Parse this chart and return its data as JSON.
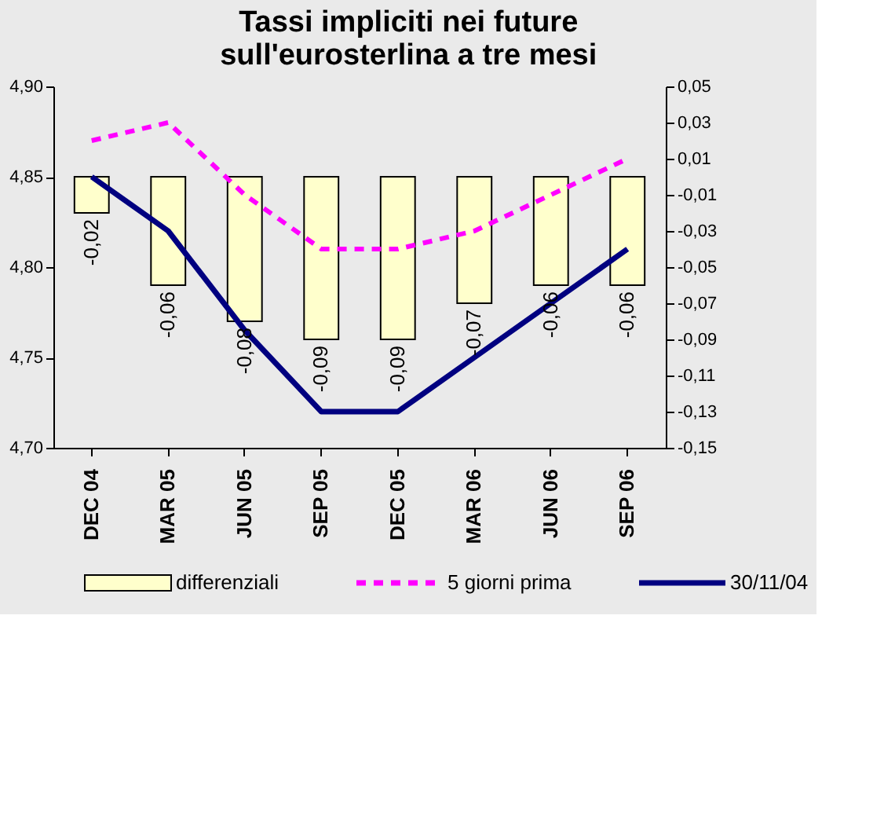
{
  "chart_data": {
    "type": "bar",
    "title": "Tassi impliciti nei future\nsull'eurosterlina a tre mesi",
    "categories": [
      "DEC 04",
      "MAR 05",
      "JUN 05",
      "SEP 05",
      "DEC 05",
      "MAR 06",
      "JUN 06",
      "SEP 06"
    ],
    "series": [
      {
        "name": "differenziali",
        "axis": "y2",
        "color": "#ffffcc",
        "values": [
          -0.02,
          -0.06,
          -0.08,
          -0.09,
          -0.09,
          -0.07,
          -0.06,
          -0.06
        ],
        "value_labels": [
          "-0,02",
          "-0,06",
          "-0,08",
          "-0,09",
          "-0,09",
          "-0,07",
          "-0,06",
          "-0,06"
        ]
      },
      {
        "name": "5 giorni prima",
        "type": "line",
        "line_style": "dashed",
        "color": "#ff00ff",
        "values": [
          4.87,
          4.88,
          4.84,
          4.81,
          4.81,
          4.82,
          4.84,
          4.86
        ]
      },
      {
        "name": "30/11/04",
        "type": "line",
        "line_style": "solid",
        "color": "#000080",
        "values": [
          4.85,
          4.82,
          4.765,
          4.72,
          4.72,
          4.75,
          4.78,
          4.81
        ]
      }
    ],
    "ylim": [
      4.7,
      4.9
    ],
    "yticks": [
      {
        "value": 4.7,
        "label": "4,70"
      },
      {
        "value": 4.75,
        "label": "4,75"
      },
      {
        "value": 4.8,
        "label": "4,80"
      },
      {
        "value": 4.85,
        "label": "4,85"
      },
      {
        "value": 4.9,
        "label": "4,90"
      }
    ],
    "y2lim": [
      -0.15,
      0.05
    ],
    "y2ticks": [
      {
        "value": -0.15,
        "label": "-0,15"
      },
      {
        "value": -0.13,
        "label": "-0,13"
      },
      {
        "value": -0.11,
        "label": "-0,11"
      },
      {
        "value": -0.09,
        "label": "-0,09"
      },
      {
        "value": -0.07,
        "label": "-0,07"
      },
      {
        "value": -0.05,
        "label": "-0,05"
      },
      {
        "value": -0.03,
        "label": "-0,03"
      },
      {
        "value": -0.01,
        "label": "-0,01"
      },
      {
        "value": 0.01,
        "label": "0,01"
      },
      {
        "value": 0.03,
        "label": "0,03"
      },
      {
        "value": 0.05,
        "label": "0,05"
      }
    ],
    "grid": false,
    "legend": "bottom",
    "marker": "none"
  }
}
